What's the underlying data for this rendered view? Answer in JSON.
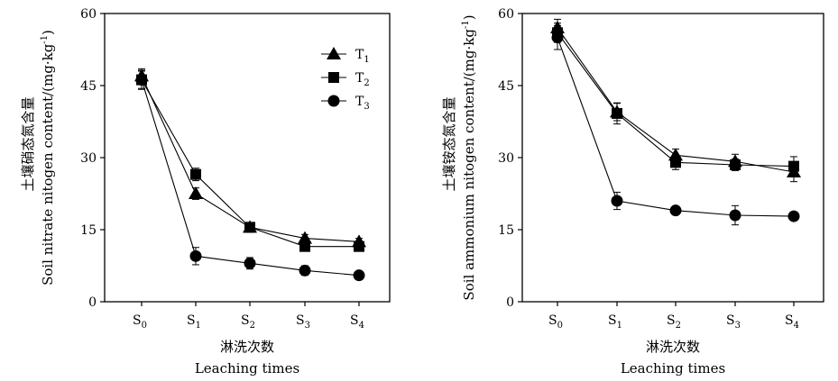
{
  "chart_data": [
    {
      "type": "line",
      "categories": [
        "S0",
        "S1",
        "S2",
        "S3",
        "S4"
      ],
      "category_labels": [
        {
          "base": "S",
          "sub": "0"
        },
        {
          "base": "S",
          "sub": "1"
        },
        {
          "base": "S",
          "sub": "2"
        },
        {
          "base": "S",
          "sub": "3"
        },
        {
          "base": "S",
          "sub": "4"
        }
      ],
      "ylim": [
        0,
        60
      ],
      "yticks": [
        "0",
        "15",
        "30",
        "45",
        "60"
      ],
      "ylabel_zh": "土壤硝态氮含量",
      "ylabel_en": "Soil nitrate nitogen content/(mg·kg",
      "ylabel_unit_sup": "-1",
      "ylabel_close": ")",
      "xlabel_zh": "淋洗次数",
      "xlabel_en": "Leaching times",
      "legend": {
        "placement": "top-right",
        "entries": [
          {
            "base": "T",
            "sub": "1"
          },
          {
            "base": "T",
            "sub": "2"
          },
          {
            "base": "T",
            "sub": "3"
          }
        ]
      },
      "series": [
        {
          "name": "T1",
          "marker": "triangle",
          "values": [
            47.0,
            22.5,
            15.5,
            13.2,
            12.5
          ],
          "errors": [
            1.5,
            1.2,
            1.0,
            0.8,
            0.7
          ]
        },
        {
          "name": "T2",
          "marker": "square",
          "values": [
            46.2,
            26.5,
            15.5,
            11.5,
            11.5
          ],
          "errors": [
            1.8,
            1.3,
            1.0,
            1.0,
            1.0
          ]
        },
        {
          "name": "T3",
          "marker": "circle",
          "values": [
            46.2,
            9.5,
            8.0,
            6.5,
            5.5
          ],
          "errors": [
            2.0,
            1.8,
            1.2,
            1.0,
            0.8
          ]
        }
      ]
    },
    {
      "type": "line",
      "categories": [
        "S0",
        "S1",
        "S2",
        "S3",
        "S4"
      ],
      "category_labels": [
        {
          "base": "S",
          "sub": "0"
        },
        {
          "base": "S",
          "sub": "1"
        },
        {
          "base": "S",
          "sub": "2"
        },
        {
          "base": "S",
          "sub": "3"
        },
        {
          "base": "S",
          "sub": "4"
        }
      ],
      "ylim": [
        0,
        60
      ],
      "yticks": [
        "0",
        "15",
        "30",
        "45",
        "60"
      ],
      "ylabel_zh": "土壤铵态氮含量",
      "ylabel_en": "Soil ammonium nitogen content/(mg·kg",
      "ylabel_unit_sup": "-1",
      "ylabel_close": ")",
      "xlabel_zh": "淋洗次数",
      "xlabel_en": "Leaching times",
      "series": [
        {
          "name": "T1",
          "marker": "triangle",
          "values": [
            57.0,
            39.5,
            30.5,
            29.2,
            27.0
          ],
          "errors": [
            1.8,
            1.8,
            1.3,
            1.5,
            2.0
          ]
        },
        {
          "name": "T2",
          "marker": "square",
          "values": [
            56.0,
            39.2,
            29.0,
            28.5,
            28.2
          ],
          "errors": [
            2.0,
            2.2,
            1.5,
            1.2,
            2.0
          ]
        },
        {
          "name": "T3",
          "marker": "circle",
          "values": [
            55.0,
            21.0,
            19.0,
            18.0,
            17.8
          ],
          "errors": [
            2.5,
            1.8,
            0.8,
            2.0,
            0.8
          ]
        }
      ]
    }
  ]
}
